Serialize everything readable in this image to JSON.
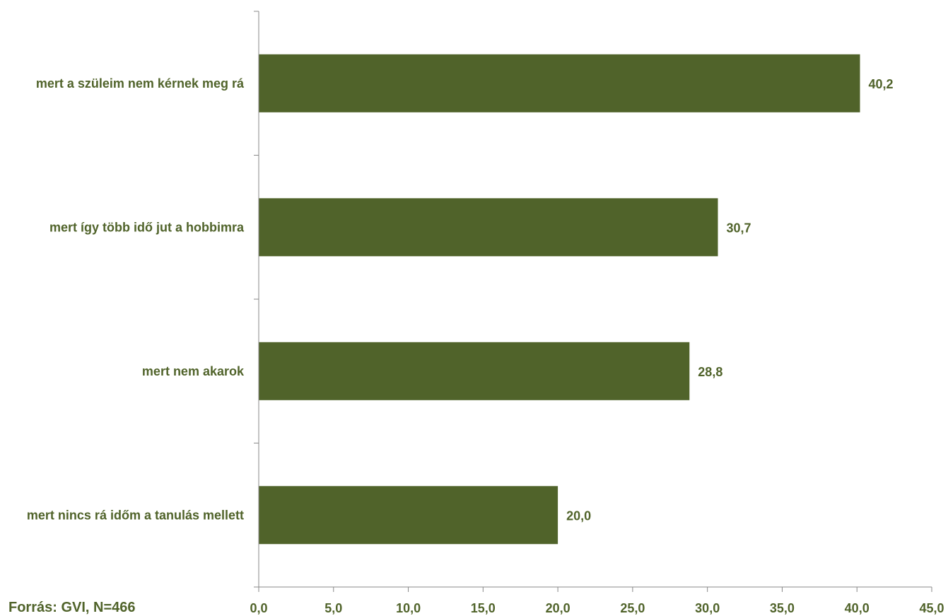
{
  "colors": {
    "bar": "#50632a",
    "text": "#50632a",
    "axis": "#888888"
  },
  "source_text": "Forrás: GVI, N=466",
  "chart_data": {
    "type": "bar",
    "orientation": "horizontal",
    "categories": [
      "mert a szüleim nem kérnek meg rá",
      "mert így több idő jut a hobbimra",
      "mert nem akarok",
      "mert nincs rá időm a tanulás mellett"
    ],
    "values": [
      40.2,
      30.7,
      28.8,
      20.0
    ],
    "value_labels": [
      "40,2",
      "30,7",
      "28,8",
      "20,0"
    ],
    "xlim": [
      0,
      45
    ],
    "x_ticks": [
      0,
      5,
      10,
      15,
      20,
      25,
      30,
      35,
      40,
      45
    ],
    "x_tick_labels": [
      "0,0",
      "5,0",
      "10,0",
      "15,0",
      "20,0",
      "25,0",
      "30,0",
      "35,0",
      "40,0",
      "45,0"
    ],
    "grid": false,
    "title": "",
    "xlabel": "",
    "ylabel": ""
  }
}
